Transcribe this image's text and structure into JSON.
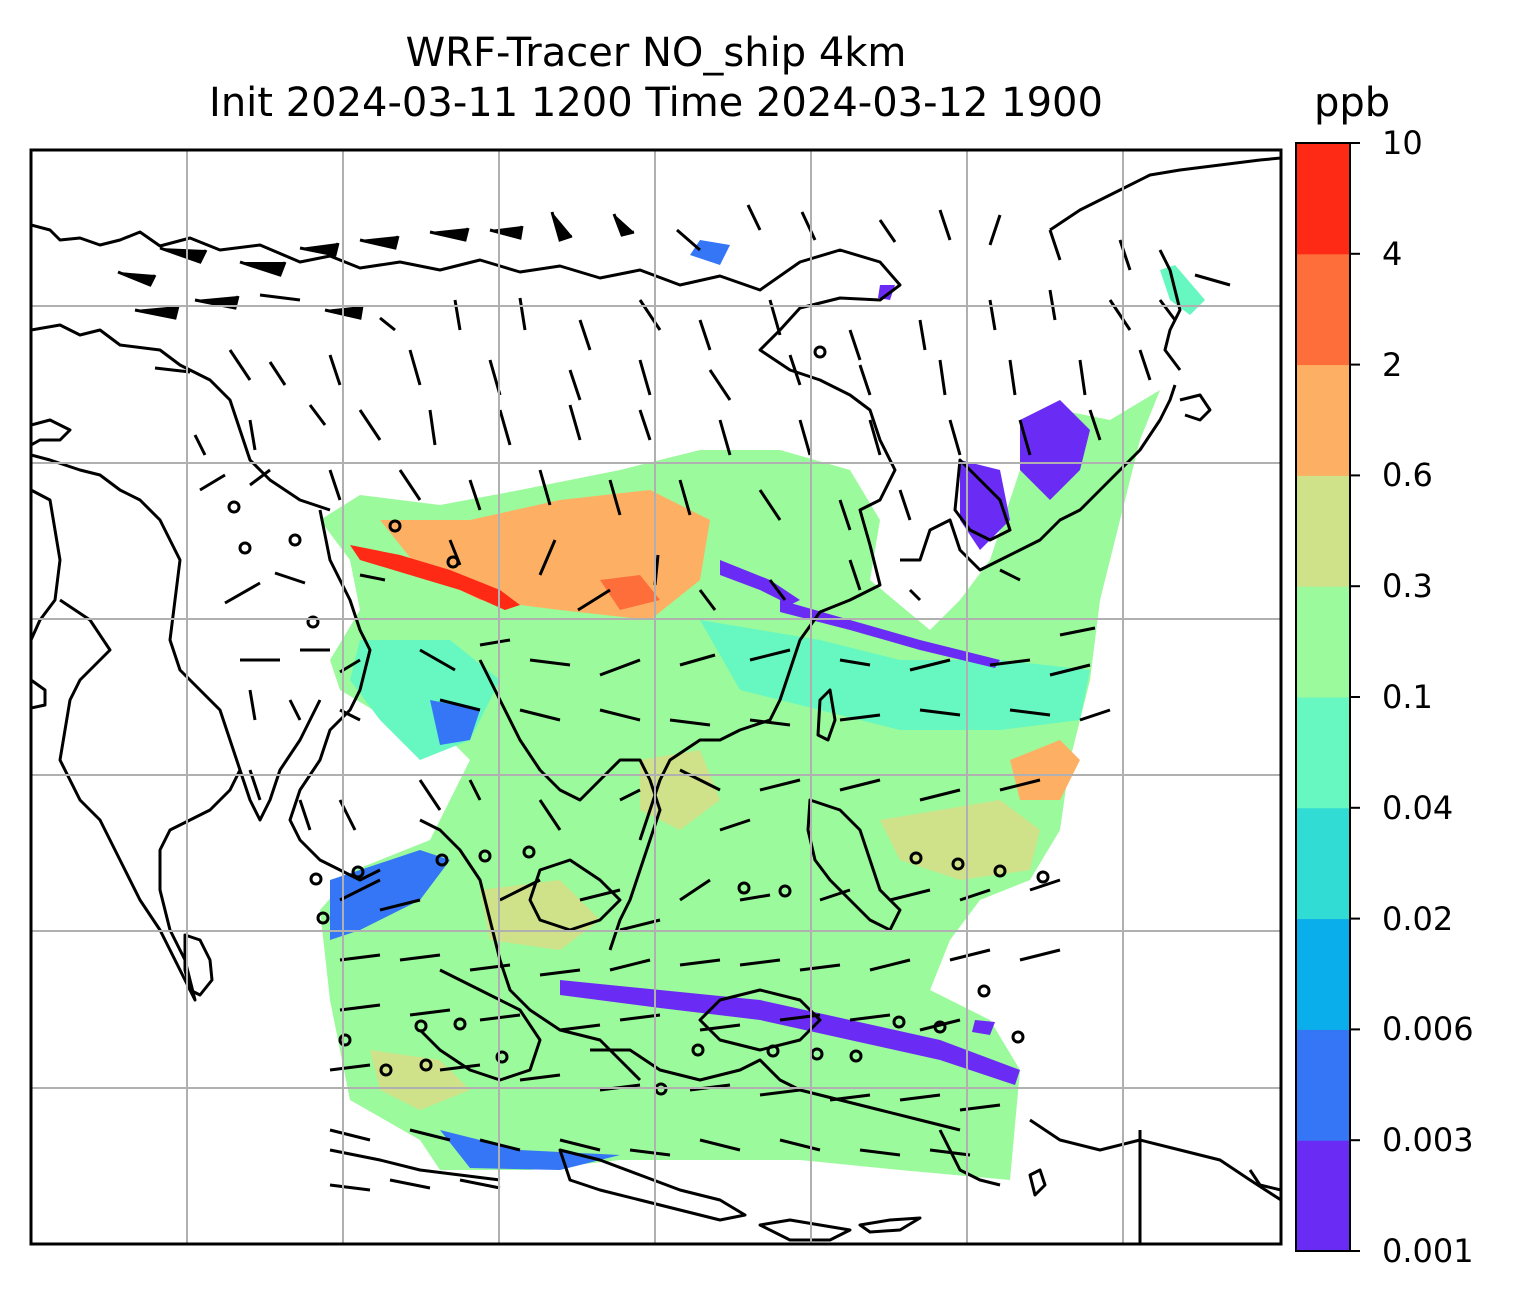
{
  "title": {
    "line1": "WRF-Tracer NO_ship 4km",
    "line2": "Init 2024-03-11 1200 Time 2024-03-12 1900"
  },
  "colorbar": {
    "unit": "ppb",
    "levels": [
      "0.001",
      "0.003",
      "0.006",
      "0.02",
      "0.04",
      "0.1",
      "0.3",
      "0.6",
      "2",
      "4",
      "10"
    ],
    "colors": [
      "#6a2cf5",
      "#3476f5",
      "#0aaeea",
      "#30dcd4",
      "#66f8c0",
      "#9bfa9b",
      "#cfe28a",
      "#fdb064",
      "#fe6e3a",
      "#fe2a15"
    ]
  },
  "map": {
    "field": "NO_ship",
    "gridlines": true,
    "wind_barbs": true,
    "coastlines": true,
    "borders": true
  }
}
